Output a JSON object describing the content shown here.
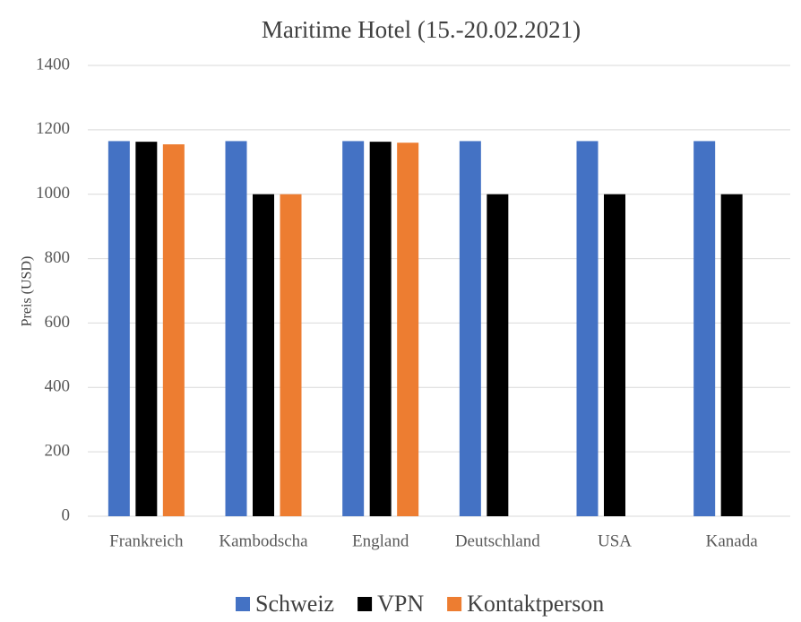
{
  "chart_data": {
    "type": "bar",
    "title": "Maritime Hotel (15.-20.02.2021)",
    "y_label": "Preis (USD)",
    "categories": [
      "Frankreich",
      "Kambodscha",
      "England",
      "Deutschland",
      "USA",
      "Kanada"
    ],
    "series": [
      {
        "name": "Schweiz",
        "color": "#4472c4",
        "values": [
          1165,
          1165,
          1165,
          1165,
          1165,
          1165
        ]
      },
      {
        "name": "VPN",
        "color": "#000000",
        "values": [
          1163,
          1000,
          1163,
          1000,
          1000,
          1000
        ]
      },
      {
        "name": "Kontaktperson",
        "color": "#ed7d31",
        "values": [
          1155,
          1000,
          1160,
          null,
          null,
          null
        ]
      }
    ],
    "ylim": [
      0,
      1400
    ],
    "yticks": [
      0,
      200,
      400,
      600,
      800,
      1000,
      1200,
      1400
    ],
    "grid": true,
    "legend": "bottom"
  }
}
